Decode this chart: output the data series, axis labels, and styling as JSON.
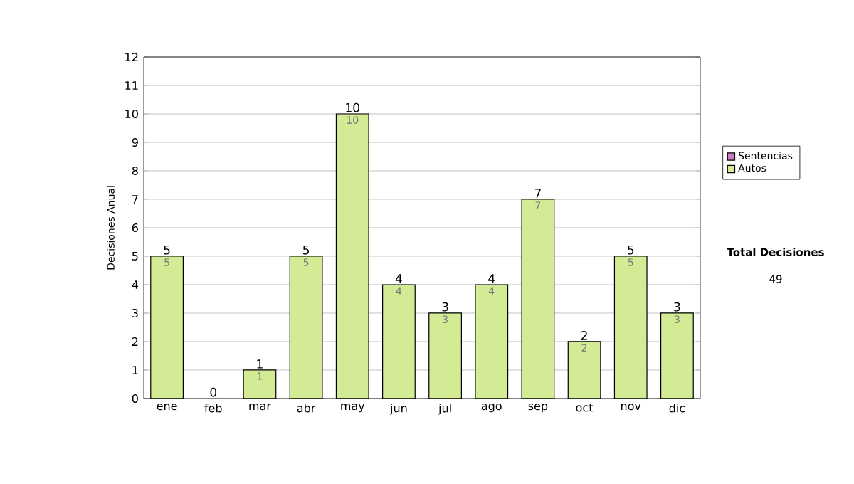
{
  "chart_data": {
    "type": "bar",
    "stacked": true,
    "ylabel": "Decisiones Anual",
    "categories": [
      "ene",
      "feb",
      "mar",
      "abr",
      "may",
      "jun",
      "jul",
      "ago",
      "sep",
      "oct",
      "nov",
      "dic"
    ],
    "series": [
      {
        "name": "Sentencias",
        "color": "#cc7ac4",
        "values": [
          0,
          0,
          0,
          0,
          0,
          0,
          0,
          0,
          0,
          0,
          0,
          0
        ]
      },
      {
        "name": "Autos",
        "color": "#d4eb96",
        "values": [
          5,
          0,
          1,
          5,
          10,
          4,
          3,
          4,
          7,
          2,
          5,
          3
        ],
        "value_labels": [
          "5",
          null,
          "1",
          "5",
          "10",
          "4",
          "3",
          "4",
          "7",
          "2",
          "5",
          "3"
        ]
      }
    ],
    "totals": [
      "5",
      "0",
      "1",
      "5",
      "10",
      "4",
      "3",
      "4",
      "7",
      "2",
      "5",
      "3"
    ],
    "ylim": [
      0,
      12
    ],
    "yticks": [
      0,
      1,
      2,
      3,
      4,
      5,
      6,
      7,
      8,
      9,
      10,
      11,
      12
    ],
    "grid": "y",
    "legend": "right",
    "annotations": [
      "Total Decisiones",
      "49"
    ]
  }
}
